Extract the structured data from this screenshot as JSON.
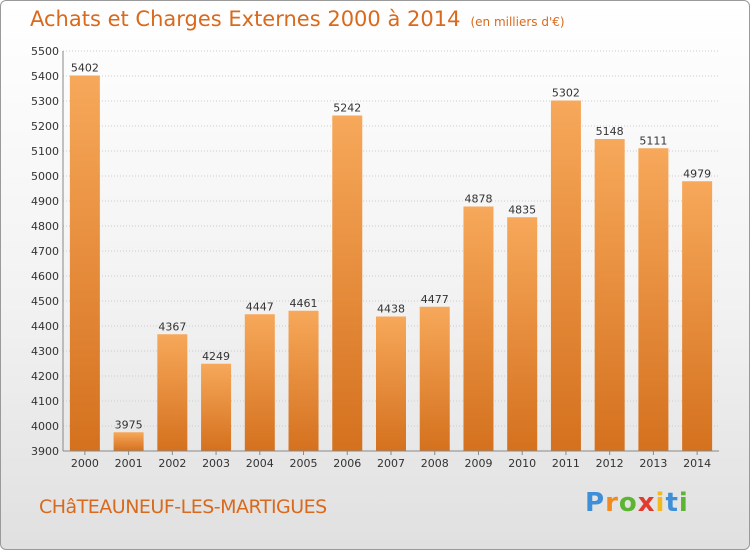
{
  "header": {
    "title": "Achats et Charges Externes 2000 à 2014",
    "unit": "(en milliers d'€)"
  },
  "footer": {
    "city": "CHâTEAUNEUF-LES-MARTIGUES",
    "logo_letters": [
      "P",
      "r",
      "o",
      "x",
      "i",
      "t",
      "i"
    ],
    "logo_colors": [
      "#3e8fd8",
      "#f28a20",
      "#5bb432",
      "#e23b2e",
      "#f2b81c",
      "#3e8fd8",
      "#5bb432"
    ]
  },
  "colors": {
    "bar_light": "#f7a85a",
    "bar_dark": "#d4711e",
    "grid": "#cccccc",
    "text_accent": "#d9691c"
  },
  "chart_data": {
    "type": "bar",
    "title": "Achats et Charges Externes 2000 à 2014",
    "unit": "(en milliers d'€)",
    "categories": [
      "2000",
      "2001",
      "2002",
      "2003",
      "2004",
      "2005",
      "2006",
      "2007",
      "2008",
      "2009",
      "2010",
      "2011",
      "2012",
      "2013",
      "2014"
    ],
    "values": [
      5402,
      3975,
      4367,
      4249,
      4447,
      4461,
      5242,
      4438,
      4477,
      4878,
      4835,
      5302,
      5148,
      5111,
      4979
    ],
    "ylim": [
      3900,
      5500
    ],
    "yticks": [
      3900,
      4000,
      4100,
      4200,
      4300,
      4400,
      4500,
      4600,
      4700,
      4800,
      4900,
      5000,
      5100,
      5200,
      5300,
      5400,
      5500
    ],
    "grid": true,
    "data_labels": true
  }
}
